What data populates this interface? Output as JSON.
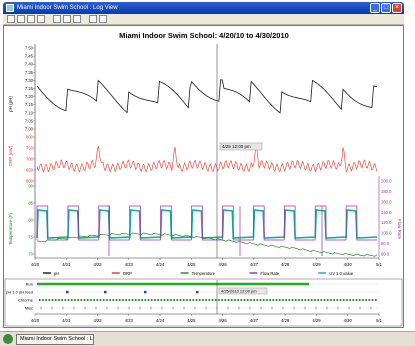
{
  "window": {
    "title": "Miami Indoor Swim School : Log View"
  },
  "toolbar": {
    "icons": [
      "new-icon",
      "open-icon",
      "save-icon",
      "print-icon",
      "zoom-icon",
      "export-icon",
      "settings-icon",
      "pan-icon",
      "zoom-in-icon"
    ]
  },
  "chart": {
    "title": "Miami Indoor Swim School: 4/20/10 to 4/30/2010",
    "ph_axis_label": "pH (pH)",
    "orp_axis_label": "ORP (mV)",
    "temp_axis_label": "Temperature (F)",
    "flow_axis_label": "Flow Rate",
    "cursor_label": "4/25 12:00 pm",
    "ph_ticks": [
      "7.50",
      "7.45",
      "7.40",
      "7.35",
      "7.30",
      "7.25",
      "7.20",
      "7.15",
      "7.10",
      "7.05",
      "7.00"
    ],
    "orp_ticks": [
      "800",
      "750",
      "700",
      "650",
      "600"
    ],
    "temp_ticks": [
      "90",
      "85",
      "80",
      "75",
      "70"
    ],
    "flow_ticks": [
      "200.0",
      "180.0",
      "160.0",
      "140.0",
      "120.0",
      "100.0",
      "80.0",
      "60.0"
    ],
    "x_ticks": [
      "4/20",
      "4/21",
      "4/22",
      "4/23",
      "4/24",
      "4/25",
      "4/26",
      "4/27",
      "4/28",
      "4/29",
      "4/30",
      "5/1"
    ],
    "legend": [
      {
        "label": "pH",
        "color": "#1a1a1a"
      },
      {
        "label": "ORP",
        "color": "#ee3322"
      },
      {
        "label": "Temperature",
        "color": "#228822"
      },
      {
        "label": "Flow Rate",
        "color": "#993399"
      },
      {
        "label": "UV 1.0 value",
        "color": "#11aaaa"
      }
    ]
  },
  "events": {
    "rows": [
      "Run",
      "pH 1.0 pH feed",
      "Chlorine",
      "Misc"
    ],
    "cursor_label": "4/25/2010 12:00 pm",
    "x_ticks": [
      "4/20",
      "4/21",
      "4/22",
      "4/23",
      "4/24",
      "4/25",
      "4/26",
      "4/27",
      "4/28",
      "4/29",
      "4/30",
      "5/1"
    ]
  },
  "taskbar": {
    "task_label": "Miami Indoor Swim School : Log View"
  }
}
